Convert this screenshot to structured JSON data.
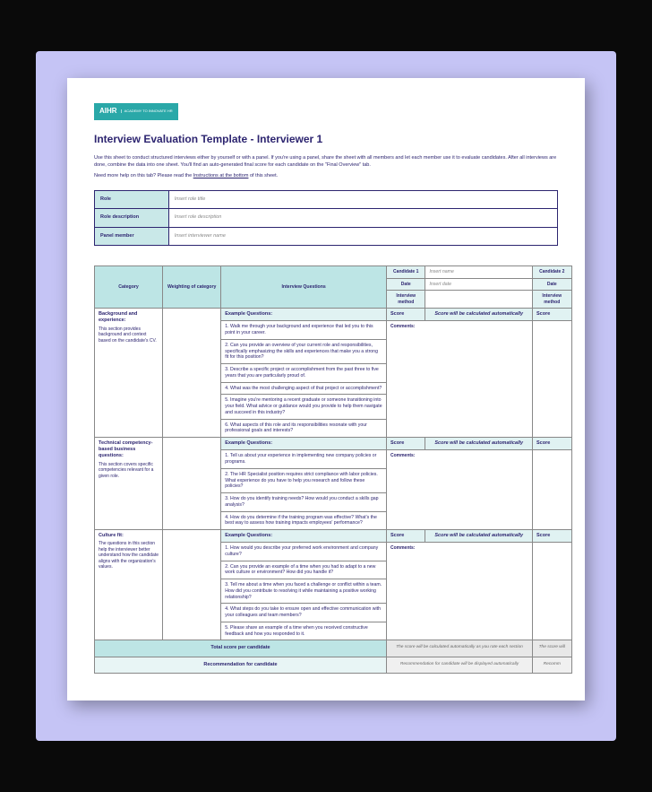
{
  "logo": {
    "main": "AIHR",
    "sub": "ACADEMY TO\nINNOVATE HR"
  },
  "title": "Interview Evaluation Template - Interviewer 1",
  "intro1": "Use this sheet to conduct structured interviews either by yourself or with a panel. If you're using a panel, share the sheet with all members and let each member use it to evaluate candidates. After all interviews are done, combine the data into one sheet. You'll find an auto-generated final score for each candidate on the \"Final Overview\" tab.",
  "intro2_a": "Need more help on this tab? Please read the ",
  "intro2_b": "Instructions at the bottom",
  "intro2_c": "of this sheet.",
  "meta": {
    "role_lbl": "Role",
    "role_val": "Insert role title",
    "desc_lbl": "Role description",
    "desc_val": "Insert role description",
    "panel_lbl": "Panel member",
    "panel_val": "Insert interviewer name"
  },
  "headers": {
    "category": "Category",
    "weighting": "Weighting of category",
    "questions": "Interview Questions",
    "cand1": "Candidate 1",
    "cand2": "Candidate 2",
    "date": "Date",
    "method": "Interview method",
    "score": "Score",
    "insert_name": "Insert name",
    "insert_date": "Insert date"
  },
  "sections": {
    "bg": {
      "title": "Background and experience:",
      "desc": "This section provides background and context based on the candidate's CV.",
      "example": "Example Questions:",
      "score_note": "Score will be calculated automatically",
      "comments": "Comments:",
      "q1": "1. Walk me through your background and experience that led you to this point in your career.",
      "q2": "2. Can you provide an overview of your current role and responsibilities, specifically emphasizing the skills and experiences that make you a strong fit for this position?",
      "q3": "3. Describe a specific project or accomplishment from the past three to five years that you are particularly proud of.",
      "q4": "4. What was the most challenging aspect of that project or accomplishment?",
      "q5": "5. Imagine you're mentoring a recent graduate or someone transitioning into your field. What advice or guidance would you provide to help them navigate and succeed in this industry?",
      "q6": "6. What aspects of this role and its responsibilities resonate with your professional goals and interests?"
    },
    "tech": {
      "title": "Technical competency-based business questions:",
      "desc": "This section covers specific competencies relevant for a given role.",
      "example": "Example Questions:",
      "score_note": "Score will be calculated automatically",
      "comments": "Comments:",
      "q1": "1. Tell us about your experience in implementing new company policies or programs.",
      "q2": "2. The HR Specialist position requires strict compliance with labor policies. What experience do you have to help you research and follow these policies?",
      "q3": "3. How do you identify training needs? How would you conduct a skills gap analysis?",
      "q4": "4. How do you determine if the training program was effective? What's the best way to assess how training impacts employees' performance?"
    },
    "culture": {
      "title": "Culture fit:",
      "desc": "The questions in this section help the interviewer better understand how the candidate aligns with the organization's values.",
      "example": "Example Questions:",
      "score_note": "Score will be calculated automatically",
      "comments": "Comments:",
      "q1": "1. How would you describe your preferred work environment and company culture?",
      "q2": "2. Can you provide an example of a time when you had to adapt to a new work culture or environment? How did you handle it?",
      "q3": "3. Tell me about a time when you faced a challenge or conflict within a team. How did you contribute to resolving it while maintaining a positive working relationship?",
      "q4": "4. What steps do you take to ensure open and effective communication with your colleagues and team members?",
      "q5": "5. Please share an example of a time when you received constructive feedback and how you responded to it."
    }
  },
  "totals": {
    "total_lbl": "Total score per candidate",
    "total_note": "The score will be calculated automatically as you rate each section",
    "total_note2": "The score will",
    "rec_lbl": "Recommendation for candidate",
    "rec_note": "Recommendation for candidate will be displayed automatically",
    "rec_note2": "Recomm"
  }
}
